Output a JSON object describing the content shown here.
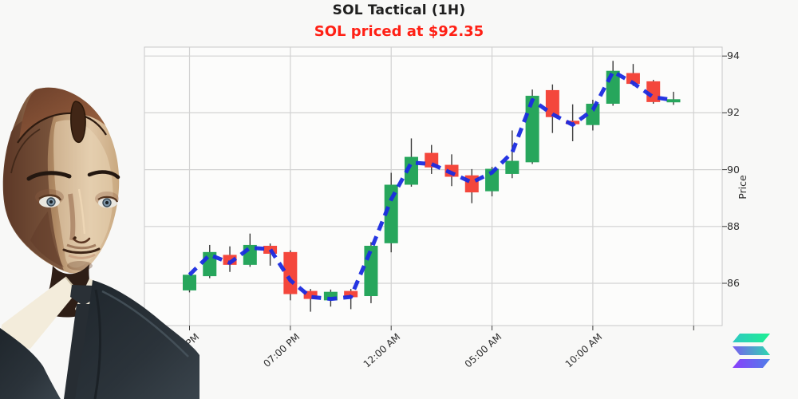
{
  "header": {
    "title": "SOL Tactical (1H)",
    "subtitle": "SOL priced at $92.35",
    "title_color": "#1e1e1e",
    "subtitle_color": "#ff2015"
  },
  "branding": {
    "logo": "solana-logo"
  },
  "decor": {
    "left_image": "android-robot-portrait"
  },
  "chart_data": {
    "type": "candlestick",
    "title": "SOL Tactical (1H)",
    "subtitle": "SOL priced at $92.35",
    "interval": "1H",
    "ylabel": "Price",
    "y_ticks": [
      86,
      88,
      90,
      92,
      94
    ],
    "ylim": [
      84.5,
      94.3
    ],
    "grid": true,
    "x_ticks": [
      {
        "i": 0,
        "label": "02:00 PM"
      },
      {
        "i": 5,
        "label": "07:00 PM"
      },
      {
        "i": 10,
        "label": "12:00 AM"
      },
      {
        "i": 15,
        "label": "05:00 AM"
      },
      {
        "i": 20,
        "label": "10:00 AM"
      },
      {
        "i": 25,
        "label": ""
      }
    ],
    "candles_format": [
      "time",
      "open",
      "high",
      "low",
      "close"
    ],
    "candles": [
      [
        "02:00 PM",
        85.75,
        86.35,
        85.68,
        86.3
      ],
      [
        "03:00 PM",
        86.25,
        87.35,
        86.18,
        87.1
      ],
      [
        "04:00 PM",
        87.0,
        87.3,
        86.4,
        86.65
      ],
      [
        "05:00 PM",
        86.65,
        87.75,
        86.58,
        87.35
      ],
      [
        "06:00 PM",
        87.32,
        87.4,
        86.62,
        87.04
      ],
      [
        "07:00 PM",
        87.1,
        87.16,
        85.4,
        85.62
      ],
      [
        "08:00 PM",
        85.73,
        85.8,
        85.0,
        85.45
      ],
      [
        "09:00 PM",
        85.4,
        85.78,
        85.18,
        85.7
      ],
      [
        "10:00 PM",
        85.73,
        85.8,
        85.09,
        85.51
      ],
      [
        "11:00 PM",
        85.55,
        87.45,
        85.3,
        87.32
      ],
      [
        "12:00 AM",
        87.41,
        89.89,
        87.09,
        89.47
      ],
      [
        "01:00 AM",
        89.47,
        91.1,
        89.4,
        90.45
      ],
      [
        "02:00 AM",
        90.59,
        90.87,
        89.85,
        90.08
      ],
      [
        "03:00 AM",
        90.17,
        90.54,
        89.42,
        89.75
      ],
      [
        "04:00 AM",
        89.8,
        90.02,
        88.82,
        89.2
      ],
      [
        "05:00 AM",
        89.24,
        90.1,
        89.06,
        90.03
      ],
      [
        "06:00 AM",
        89.85,
        91.38,
        89.7,
        90.31
      ],
      [
        "07:00 AM",
        90.26,
        92.82,
        90.2,
        92.6
      ],
      [
        "08:00 AM",
        92.8,
        93.0,
        91.29,
        91.85
      ],
      [
        "09:00 AM",
        91.72,
        92.3,
        91.0,
        91.6
      ],
      [
        "10:00 AM",
        91.57,
        92.46,
        91.38,
        92.32
      ],
      [
        "11:00 AM",
        92.32,
        93.83,
        92.25,
        93.48
      ],
      [
        "12:00 PM",
        93.4,
        93.72,
        92.95,
        93.02
      ],
      [
        "01:00 PM",
        93.11,
        93.16,
        92.32,
        92.38
      ],
      [
        "02:00 PM",
        92.37,
        92.74,
        92.28,
        92.48
      ]
    ],
    "series": [
      {
        "name": "tactical-ma",
        "style": "dashed",
        "values": [
          86.3,
          87.0,
          86.72,
          87.25,
          87.2,
          86.1,
          85.52,
          85.45,
          85.52,
          87.18,
          88.95,
          90.25,
          90.2,
          89.88,
          89.55,
          89.9,
          90.6,
          92.45,
          91.95,
          91.58,
          92.1,
          93.45,
          93.05,
          92.55,
          92.45
        ]
      }
    ],
    "colors": {
      "up": "#27a65c",
      "down": "#f4473c",
      "ma_line": "#1a2be0",
      "wick": "#3c3c3c",
      "grid": "#d2d2d2",
      "plot_border": "#c8c8c8",
      "plot_bg": "#fcfcfb",
      "page_bg": "#f8f8f7"
    },
    "legend": "none"
  }
}
